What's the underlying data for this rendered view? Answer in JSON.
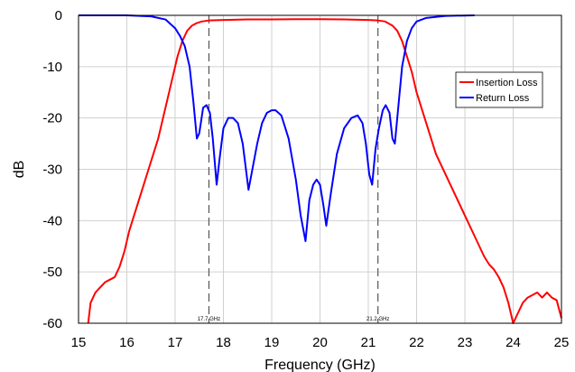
{
  "chart_data": {
    "type": "line",
    "xlabel": "Frequency (GHz)",
    "ylabel": "dB",
    "xlim": [
      15,
      25
    ],
    "ylim": [
      -60,
      0
    ],
    "x_ticks": [
      "15",
      "16",
      "17",
      "18",
      "19",
      "20",
      "21",
      "22",
      "23",
      "24",
      "25"
    ],
    "y_ticks": [
      "0",
      "-10",
      "-20",
      "-30",
      "-40",
      "-50",
      "-60"
    ],
    "grid": true,
    "legend_position": "right",
    "markers": [
      {
        "x": 17.7,
        "label": "17.7 GHz"
      },
      {
        "x": 21.2,
        "label": "21.2 GHz"
      }
    ],
    "series": [
      {
        "name": "Insertion Loss",
        "color": "#ff0000",
        "x": [
          15.2,
          15.25,
          15.35,
          15.45,
          15.55,
          15.65,
          15.75,
          15.85,
          15.95,
          16.05,
          16.15,
          16.25,
          16.35,
          16.45,
          16.55,
          16.65,
          16.75,
          16.85,
          16.95,
          17.05,
          17.15,
          17.25,
          17.35,
          17.45,
          17.55,
          17.7,
          18.0,
          18.5,
          19.0,
          19.5,
          20.0,
          20.5,
          21.0,
          21.2,
          21.35,
          21.5,
          21.6,
          21.7,
          21.8,
          21.9,
          22.0,
          22.1,
          22.2,
          22.3,
          22.4,
          22.5,
          22.6,
          22.7,
          22.8,
          22.9,
          23.0,
          23.1,
          23.2,
          23.3,
          23.4,
          23.5,
          23.6,
          23.7,
          23.8,
          23.9,
          23.95,
          24.0,
          24.05,
          24.1,
          24.2,
          24.3,
          24.4,
          24.5,
          24.6,
          24.7,
          24.8,
          24.9,
          25.0
        ],
        "values": [
          -60,
          -56,
          -54,
          -53,
          -52,
          -51.5,
          -51,
          -49,
          -46,
          -42,
          -39,
          -36,
          -33,
          -30,
          -27,
          -24,
          -20,
          -16,
          -12,
          -8,
          -5,
          -3,
          -2,
          -1.5,
          -1.2,
          -1.0,
          -0.9,
          -0.8,
          -0.8,
          -0.75,
          -0.75,
          -0.8,
          -0.9,
          -1.0,
          -1.2,
          -2,
          -3,
          -5,
          -8,
          -11,
          -15,
          -18,
          -21,
          -24,
          -27,
          -29,
          -31,
          -33,
          -35,
          -37,
          -39,
          -41,
          -43,
          -45,
          -47,
          -48.5,
          -49.5,
          -51,
          -53,
          -56,
          -58,
          -60,
          -59,
          -58,
          -56,
          -55,
          -54.5,
          -54,
          -55,
          -54,
          -55,
          -55.5,
          -59
        ]
      },
      {
        "name": "Return Loss",
        "color": "#0000ff",
        "x": [
          15.0,
          16.0,
          16.5,
          16.8,
          17.0,
          17.1,
          17.2,
          17.3,
          17.38,
          17.45,
          17.5,
          17.58,
          17.65,
          17.72,
          17.78,
          17.86,
          17.92,
          18.0,
          18.1,
          18.2,
          18.3,
          18.4,
          18.52,
          18.6,
          18.7,
          18.8,
          18.9,
          19.0,
          19.08,
          19.2,
          19.35,
          19.5,
          19.6,
          19.7,
          19.78,
          19.86,
          19.93,
          20.0,
          20.07,
          20.13,
          20.22,
          20.35,
          20.5,
          20.65,
          20.78,
          20.88,
          20.95,
          21.02,
          21.08,
          21.15,
          21.22,
          21.3,
          21.36,
          21.44,
          21.5,
          21.55,
          21.62,
          21.7,
          21.8,
          21.9,
          22.0,
          22.2,
          22.6,
          23.2
        ],
        "values": [
          0,
          0,
          -0.2,
          -0.8,
          -2.5,
          -4,
          -6,
          -10,
          -17,
          -24,
          -23,
          -18,
          -17.5,
          -19,
          -24,
          -33,
          -28,
          -22,
          -20,
          -20,
          -21,
          -25,
          -34,
          -30,
          -25,
          -21,
          -19,
          -18.5,
          -18.5,
          -19.5,
          -24,
          -32,
          -39,
          -44,
          -36,
          -33,
          -32,
          -33,
          -37,
          -41,
          -35,
          -27,
          -22,
          -20,
          -19.5,
          -21,
          -25,
          -31,
          -33,
          -26,
          -22,
          -18.5,
          -17.5,
          -19,
          -24,
          -25,
          -18,
          -10,
          -5,
          -2.5,
          -1.2,
          -0.5,
          -0.1,
          0
        ]
      }
    ]
  }
}
